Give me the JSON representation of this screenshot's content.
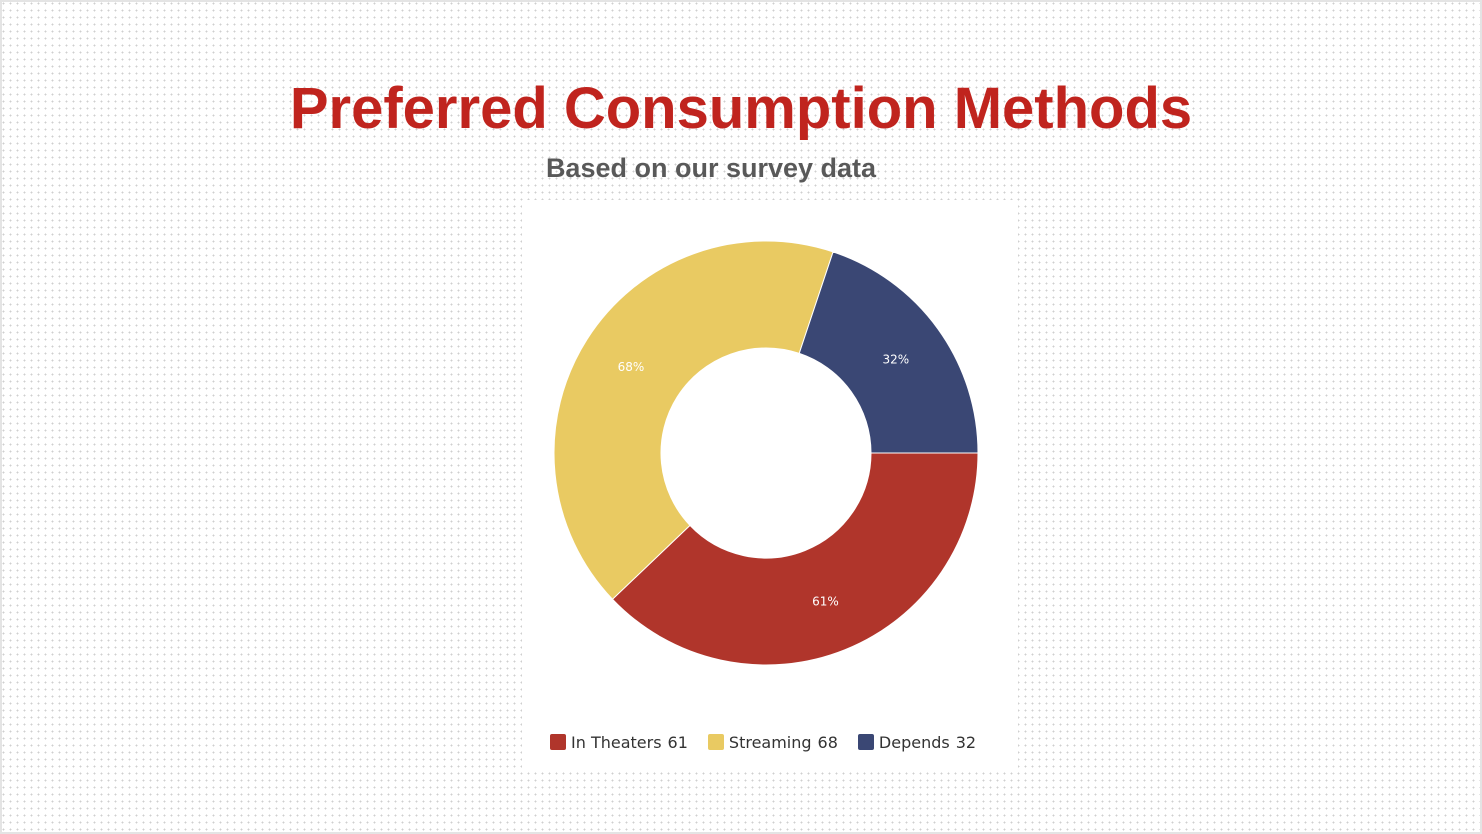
{
  "slide": {
    "title": "Preferred Consumption Methods",
    "subtitle": "Based on our survey data"
  },
  "chart_data": {
    "type": "pie",
    "donut": true,
    "start_angle_deg": 90,
    "slices": [
      {
        "label": "In Theaters",
        "value": 61,
        "percent_label": "61%",
        "color": "#b0352b"
      },
      {
        "label": "Streaming",
        "value": 68,
        "percent_label": "68%",
        "color": "#e9ca62"
      },
      {
        "label": "Depends",
        "value": 32,
        "percent_label": "32%",
        "color": "#3a4774"
      }
    ],
    "legend_position": "bottom"
  },
  "colors": {
    "title": "#c0241e",
    "subtitle": "#595959"
  }
}
